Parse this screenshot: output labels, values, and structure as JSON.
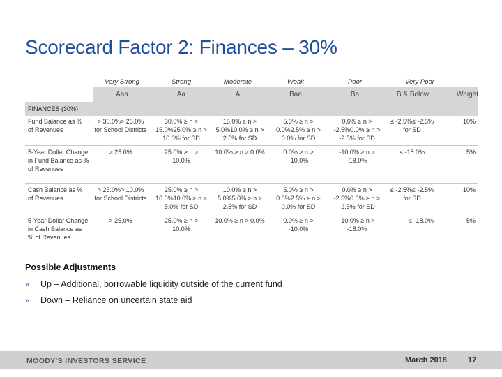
{
  "title": "Scorecard Factor 2: Finances – 30%",
  "ratings": [
    "Very Strong",
    "Strong",
    "Moderate",
    "Weak",
    "Poor",
    "Very Poor"
  ],
  "grades": [
    "Aaa",
    "Aa",
    "A",
    "Baa",
    "Ba",
    "B & Below",
    "Weight"
  ],
  "section": "FINANCES (30%)",
  "rows": [
    {
      "label": "Fund Balance as % of Revenues",
      "cells": [
        "> 30.0%> 25.0% for School Districts",
        "30.0% ≥ n > 15.0%25.0% ≥ n > 10.0% for SD",
        "15.0% ≥ n > 5.0%10.0% ≥ n > 2.5% for SD",
        "5.0% ≥ n > 0.0%2.5% ≥ n > 0.0% for SD",
        "0.0% ≥ n > -2.5%0.0% ≥ n > -2.5% for SD",
        "≤ -2.5%≤ -2.5% for SD"
      ],
      "weight": "10%"
    },
    {
      "label": "5-Year Dollar Change in Fund Balance as % of Revenues",
      "cells": [
        "> 25.0%",
        "25.0% ≥ n > 10.0%",
        "10.0% ≥ n > 0.0%",
        "0.0% ≥ n > -10.0%",
        "-10.0% ≥ n > -18.0%",
        "≤ -18.0%"
      ],
      "weight": "5%"
    },
    {
      "label": "Cash Balance as % of Revenues",
      "cells": [
        "> 25.0%> 10.0% for School Districts",
        "25.0% ≥ n > 10.0%10.0% ≥ n > 5.0% for SD",
        "10.0% ≥ n > 5.0%5.0% ≥ n > 2.5% for SD",
        "5.0% ≥ n > 0.0%2.5% ≥ n > 0.0% for SD",
        "0.0% ≥ n > -2.5%0.0% ≥ n > -2.5% for SD",
        "≤ -2.5%≤ -2.5% for SD"
      ],
      "weight": "10%"
    },
    {
      "label": "5-Year Dollar Change in Cash Balance as % of Revenues",
      "cells": [
        "> 25.0%",
        "25.0% ≥ n > 10.0%",
        "10.0% ≥ n > 0.0%",
        "0.0% ≥ n > -10.0%",
        "-10.0% ≥ n > -18.0%",
        "≤ -18.0%"
      ],
      "weight": "5%"
    }
  ],
  "adjustments": {
    "title": "Possible Adjustments",
    "bullet_mark": "»",
    "items": [
      "Up – Additional, borrowable liquidity outside of the current fund",
      "Down – Reliance on uncertain state aid"
    ]
  },
  "footer": {
    "brand": "MOODY'S INVESTORS SERVICE",
    "date": "March 2018",
    "page": "17"
  },
  "colors": {
    "title": "#1f4e9c",
    "bars": "#d6d6d6",
    "footer": "#cfcfcf"
  }
}
